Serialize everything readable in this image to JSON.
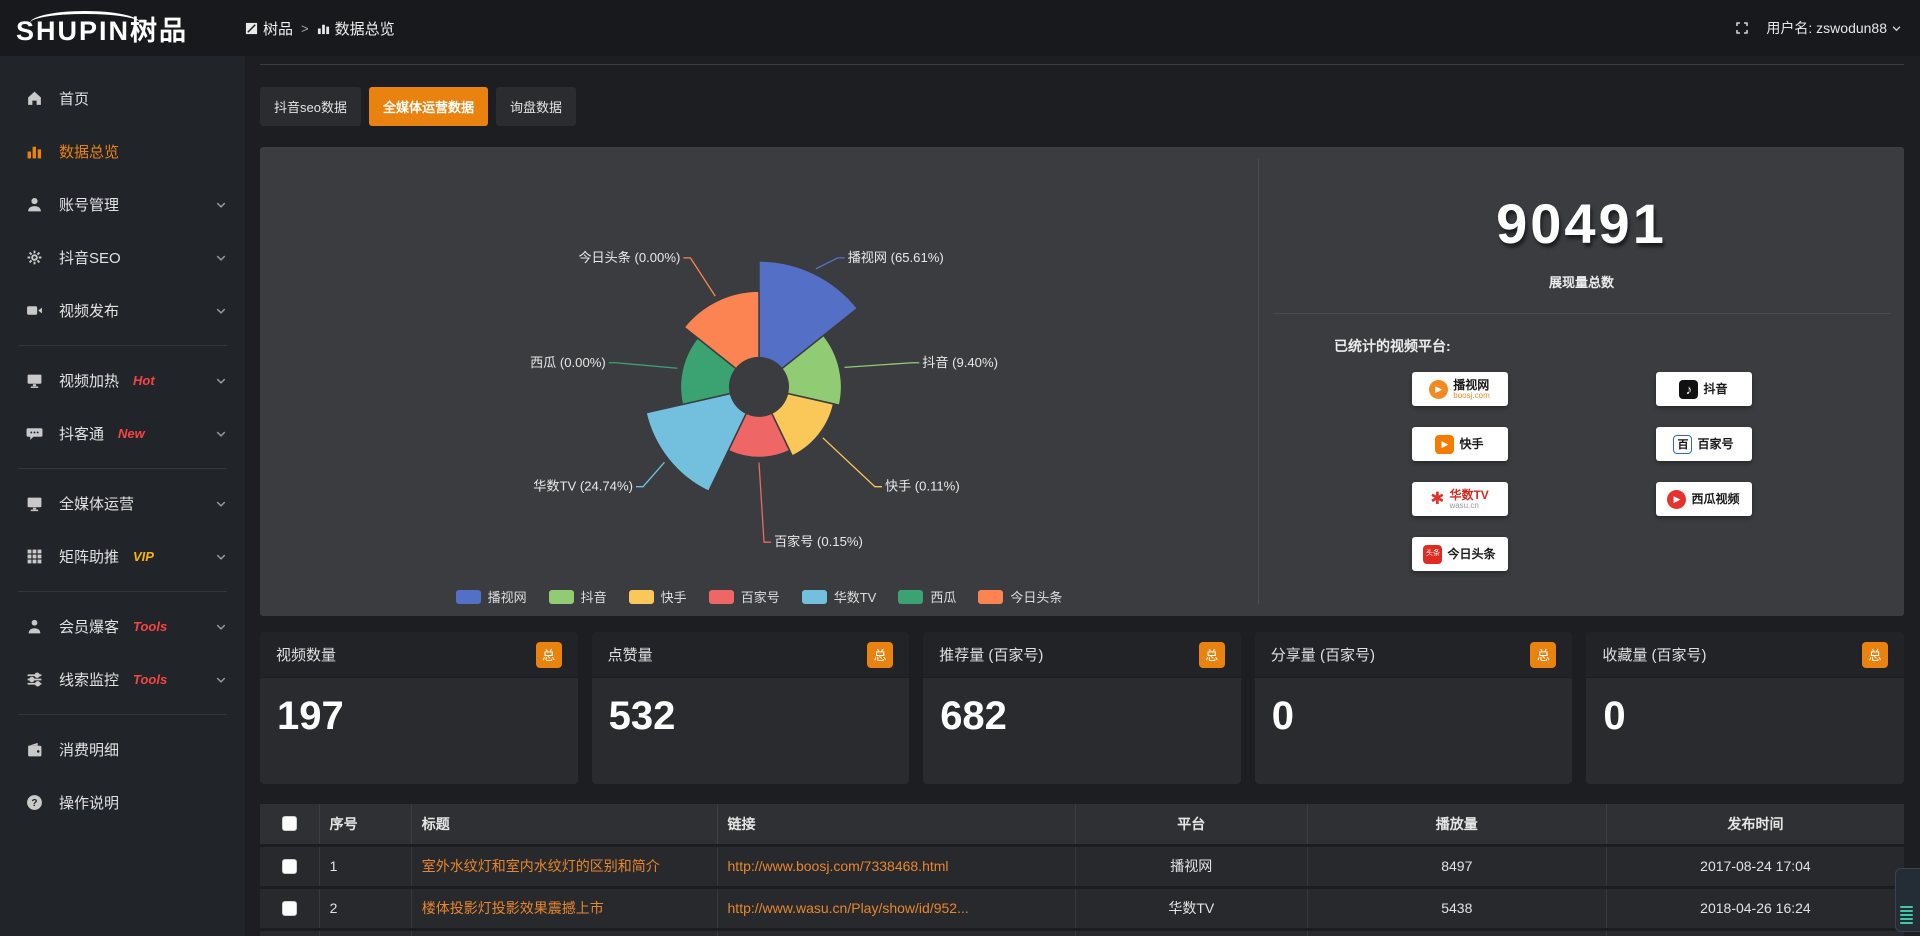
{
  "topbar": {
    "breadcrumb": {
      "root": "树品",
      "separator": ">",
      "current": "数据总览"
    },
    "username": "用户名: zswodun88"
  },
  "logo": {
    "text": "SHUPIN树品"
  },
  "sidebar": {
    "groups": [
      {
        "items": [
          {
            "label": "首页",
            "icon": "home-icon",
            "active": false,
            "expandable": false
          },
          {
            "label": "数据总览",
            "icon": "bar-chart-icon",
            "active": true,
            "expandable": false
          },
          {
            "label": "账号管理",
            "icon": "user-icon",
            "active": false,
            "expandable": true
          },
          {
            "label": "抖音SEO",
            "icon": "gear-icon",
            "active": false,
            "expandable": true
          },
          {
            "label": "视频发布",
            "icon": "video-icon",
            "active": false,
            "expandable": true
          }
        ]
      },
      {
        "items": [
          {
            "label": "视频加热",
            "icon": "screen-icon",
            "badge": "Hot",
            "badge_color": "#f54545",
            "expandable": true
          },
          {
            "label": "抖客通",
            "icon": "chat-icon",
            "badge": "New",
            "badge_color": "#f54545",
            "expandable": true
          }
        ]
      },
      {
        "items": [
          {
            "label": "全媒体运营",
            "icon": "monitor-icon",
            "expandable": true
          },
          {
            "label": "矩阵助推",
            "icon": "grid-icon",
            "badge": "VIP",
            "badge_color": "#f5b50a",
            "expandable": true
          }
        ]
      },
      {
        "items": [
          {
            "label": "会员爆客",
            "icon": "person-icon",
            "badge": "Tools",
            "badge_color": "#f54545",
            "expandable": true
          },
          {
            "label": "线索监控",
            "icon": "sliders-icon",
            "badge": "Tools",
            "badge_color": "#f54545",
            "expandable": true
          }
        ]
      },
      {
        "items": [
          {
            "label": "消费明细",
            "icon": "wallet-icon",
            "expandable": false
          },
          {
            "label": "操作说明",
            "icon": "question-circle-icon",
            "expandable": false
          }
        ]
      }
    ]
  },
  "tabs": [
    {
      "label": "抖音seo数据",
      "active": false
    },
    {
      "label": "全媒体运营数据",
      "active": true
    },
    {
      "label": "询盘数据",
      "active": false
    }
  ],
  "chart_data": {
    "type": "pie",
    "rose": true,
    "items": [
      {
        "name": "播视网",
        "value": 65.61,
        "percent_label": "65.61%",
        "color": "#5470c6"
      },
      {
        "name": "抖音",
        "value": 9.4,
        "percent_label": "9.40%",
        "color": "#91cc75"
      },
      {
        "name": "快手",
        "value": 0.11,
        "percent_label": "0.11%",
        "color": "#fac858"
      },
      {
        "name": "百家号",
        "value": 0.15,
        "percent_label": "0.15%",
        "color": "#ee6666"
      },
      {
        "name": "华数TV",
        "value": 24.74,
        "percent_label": "24.74%",
        "color": "#73c0de"
      },
      {
        "name": "西瓜",
        "value": 0.0,
        "percent_label": "0.00%",
        "color": "#3ba272"
      },
      {
        "name": "今日头条",
        "value": 0.0,
        "percent_label": "0.00%",
        "color": "#fc8452"
      }
    ],
    "legend": [
      "播视网",
      "抖音",
      "快手",
      "百家号",
      "华数TV",
      "西瓜",
      "今日头条"
    ],
    "legend_position": "bottom"
  },
  "summary": {
    "total_value": "90491",
    "total_label": "展现量总数",
    "platforms_label": "已统计的视频平台:",
    "platform_columns": [
      [
        {
          "name": "播视网",
          "sub": "boosj.com",
          "type": "boosj"
        },
        {
          "name": "快手",
          "type": "kuaishou"
        },
        {
          "name": "华数TV",
          "sub": "wasu.cn",
          "type": "wasu"
        },
        {
          "name": "今日头条",
          "icon_text": "头条",
          "type": "toutiao"
        }
      ],
      [
        {
          "name": "抖音",
          "type": "douyin"
        },
        {
          "name": "百家号",
          "icon_text": "百",
          "type": "baijiahao"
        },
        {
          "name": "西瓜视频",
          "type": "xigua"
        }
      ]
    ]
  },
  "stat_cards": [
    {
      "title": "视频数量",
      "badge": "总",
      "value": "197"
    },
    {
      "title": "点赞量",
      "badge": "总",
      "value": "532"
    },
    {
      "title": "推荐量 (百家号)",
      "badge": "总",
      "value": "682"
    },
    {
      "title": "分享量 (百家号)",
      "badge": "总",
      "value": "0"
    },
    {
      "title": "收藏量 (百家号)",
      "badge": "总",
      "value": "0"
    }
  ],
  "table": {
    "headers": [
      "序号",
      "标题",
      "链接",
      "平台",
      "播放量",
      "发布时间"
    ],
    "rows": [
      {
        "index": "1",
        "title": "室外水纹灯和室内水纹灯的区别和简介",
        "link": "http://www.boosj.com/7338468.html",
        "platform": "播视网",
        "plays": "8497",
        "published": "2017-08-24 17:04"
      },
      {
        "index": "2",
        "title": "楼体投影灯投影效果震撼上市",
        "link": "http://www.wasu.cn/Play/show/id/952...",
        "platform": "华数TV",
        "plays": "5438",
        "published": "2018-04-26 16:24"
      },
      {
        "index": "",
        "title": "",
        "link": "",
        "platform": "",
        "plays": "",
        "published": ""
      }
    ]
  },
  "colors": {
    "accent": "#ea820f",
    "link": "#e8872b",
    "panel": "#3a3c3f"
  }
}
